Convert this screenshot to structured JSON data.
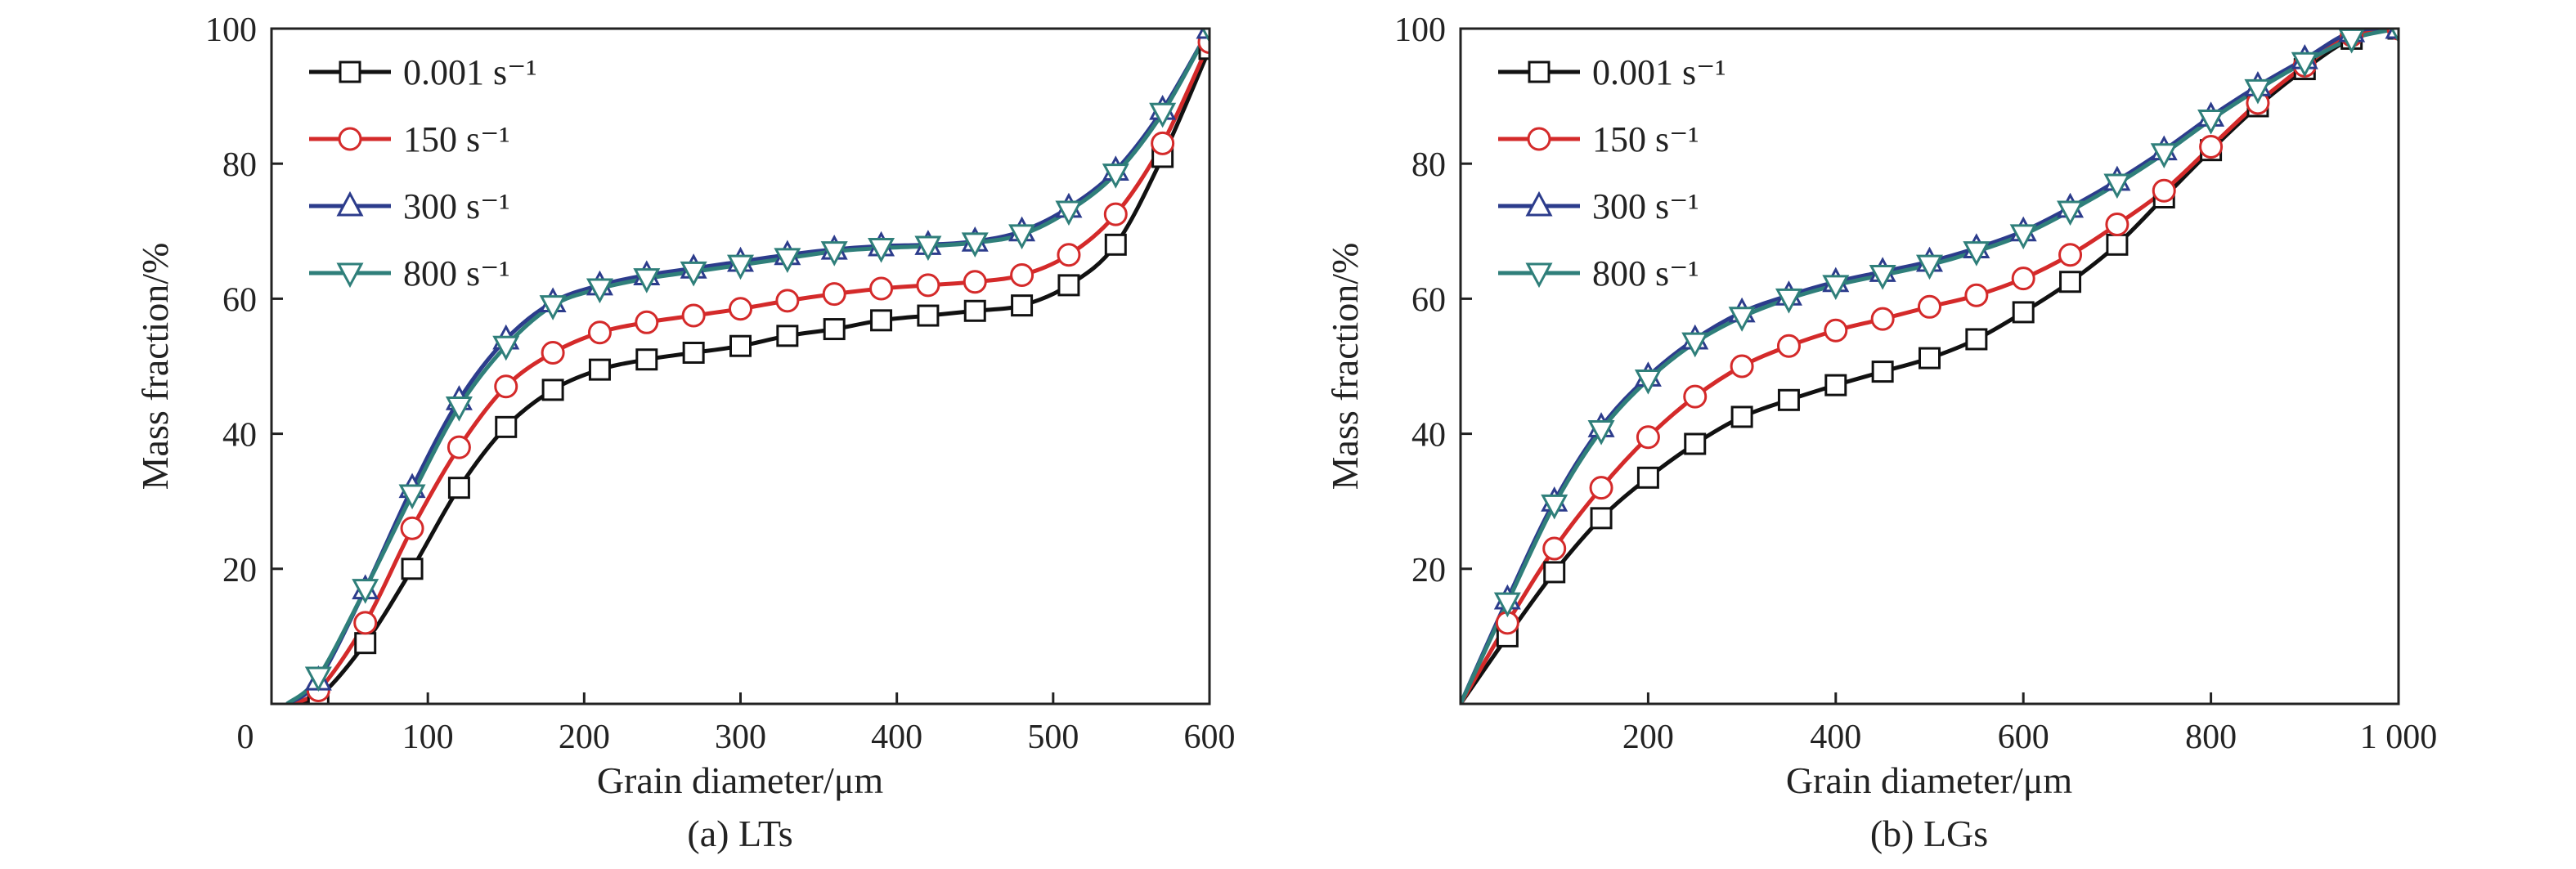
{
  "figure": {
    "panels_count": 2
  },
  "chart_data": [
    {
      "type": "line",
      "caption": "(a) LTs",
      "xlabel": "Grain diameter/μm",
      "ylabel": "Mass fraction/%",
      "xlim": [
        0,
        600
      ],
      "ylim": [
        0,
        100
      ],
      "xticks": [
        0,
        100,
        200,
        300,
        400,
        500,
        600
      ],
      "xtick_labels": [
        "0",
        "100",
        "200",
        "300",
        "400",
        "500",
        "600"
      ],
      "yticks": [
        20,
        40,
        60,
        80,
        100
      ],
      "ytick_labels": [
        "20",
        "40",
        "60",
        "80",
        "100"
      ],
      "legend_position": "top-left",
      "series": [
        {
          "name": "0.001 s⁻¹",
          "color": "#111111",
          "marker": "square",
          "x": [
            10,
            30,
            60,
            90,
            120,
            150,
            180,
            210,
            240,
            270,
            300,
            330,
            360,
            390,
            420,
            450,
            480,
            510,
            540,
            570,
            600
          ],
          "y": [
            0,
            1,
            9,
            20,
            32,
            41,
            46.5,
            49.5,
            51,
            52,
            53,
            54.5,
            55.5,
            56.8,
            57.5,
            58.2,
            59,
            62,
            68,
            81,
            97
          ]
        },
        {
          "name": "150 s⁻¹",
          "color": "#d42a2a",
          "marker": "circle",
          "x": [
            10,
            30,
            60,
            90,
            120,
            150,
            180,
            210,
            240,
            270,
            300,
            330,
            360,
            390,
            420,
            450,
            480,
            510,
            540,
            570,
            600
          ],
          "y": [
            0,
            2,
            12,
            26,
            38,
            47,
            52,
            55,
            56.5,
            57.5,
            58.5,
            59.7,
            60.7,
            61.5,
            62,
            62.5,
            63.5,
            66.5,
            72.5,
            83,
            98
          ]
        },
        {
          "name": "300 s⁻¹",
          "color": "#2c3c8c",
          "marker": "triangle-up",
          "x": [
            10,
            30,
            60,
            90,
            120,
            150,
            180,
            210,
            240,
            270,
            300,
            330,
            360,
            390,
            420,
            450,
            480,
            510,
            540,
            570,
            600
          ],
          "y": [
            0,
            3.5,
            17,
            32,
            45,
            54,
            59.5,
            62,
            63.5,
            64.5,
            65.5,
            66.5,
            67.3,
            67.8,
            68,
            68.5,
            70,
            73.5,
            79,
            88,
            100
          ]
        },
        {
          "name": "800 s⁻¹",
          "color": "#2f7f7a",
          "marker": "triangle-down",
          "x": [
            10,
            30,
            60,
            90,
            120,
            150,
            180,
            210,
            240,
            270,
            300,
            330,
            360,
            390,
            420,
            450,
            480,
            510,
            540,
            570,
            600
          ],
          "y": [
            0,
            4,
            17,
            31,
            44,
            53,
            59,
            61.5,
            63,
            64,
            65,
            66,
            67,
            67.5,
            67.8,
            68.3,
            69.5,
            73,
            78.5,
            87.5,
            100
          ]
        }
      ]
    },
    {
      "type": "line",
      "caption": "(b) LGs",
      "xlabel": "Grain diameter/μm",
      "ylabel": "Mass fraction/%",
      "xlim": [
        0,
        1000
      ],
      "ylim": [
        0,
        100
      ],
      "xticks": [
        200,
        400,
        600,
        800,
        1000
      ],
      "xtick_labels": [
        "200",
        "400",
        "600",
        "800",
        "1 000"
      ],
      "yticks": [
        20,
        40,
        60,
        80,
        100
      ],
      "ytick_labels": [
        "20",
        "40",
        "60",
        "80",
        "100"
      ],
      "legend_position": "top-left",
      "series": [
        {
          "name": "0.001 s⁻¹",
          "color": "#111111",
          "marker": "square",
          "x": [
            0,
            50,
            100,
            150,
            200,
            250,
            300,
            350,
            400,
            450,
            500,
            550,
            600,
            650,
            700,
            750,
            800,
            850,
            900,
            950,
            1000
          ],
          "y": [
            0,
            10,
            19.5,
            27.5,
            33.5,
            38.5,
            42.5,
            45,
            47.2,
            49.2,
            51.2,
            54,
            58,
            62.5,
            68,
            75,
            82,
            88.5,
            94,
            98.5,
            100
          ]
        },
        {
          "name": "150 s⁻¹",
          "color": "#d42a2a",
          "marker": "circle",
          "x": [
            0,
            50,
            100,
            150,
            200,
            250,
            300,
            350,
            400,
            450,
            500,
            550,
            600,
            650,
            700,
            750,
            800,
            850,
            900,
            950,
            1000
          ],
          "y": [
            0,
            12,
            23,
            32,
            39.5,
            45.5,
            50,
            53,
            55.3,
            57,
            58.8,
            60.5,
            63,
            66.5,
            71,
            76,
            82.5,
            89,
            94.5,
            99,
            100
          ]
        },
        {
          "name": "300 s⁻¹",
          "color": "#2c3c8c",
          "marker": "triangle-up",
          "x": [
            0,
            50,
            100,
            150,
            200,
            250,
            300,
            350,
            400,
            450,
            500,
            550,
            600,
            650,
            700,
            750,
            800,
            850,
            900,
            950,
            1000
          ],
          "y": [
            0,
            15.5,
            30,
            41,
            48.5,
            54,
            58,
            60.5,
            62.5,
            64,
            65.5,
            67.5,
            70,
            73.5,
            77.5,
            82,
            87,
            91.5,
            95.5,
            99.5,
            100
          ]
        },
        {
          "name": "800 s⁻¹",
          "color": "#2f7f7a",
          "marker": "triangle-down",
          "x": [
            0,
            50,
            100,
            150,
            200,
            250,
            300,
            350,
            400,
            450,
            500,
            550,
            600,
            650,
            700,
            750,
            800,
            850,
            900,
            950,
            1000
          ],
          "y": [
            0,
            15,
            29.5,
            40.5,
            48,
            53.5,
            57.3,
            60,
            62,
            63.5,
            65,
            67,
            69.5,
            73,
            77,
            81.5,
            86.5,
            91,
            95,
            98.5,
            100
          ]
        }
      ]
    }
  ]
}
